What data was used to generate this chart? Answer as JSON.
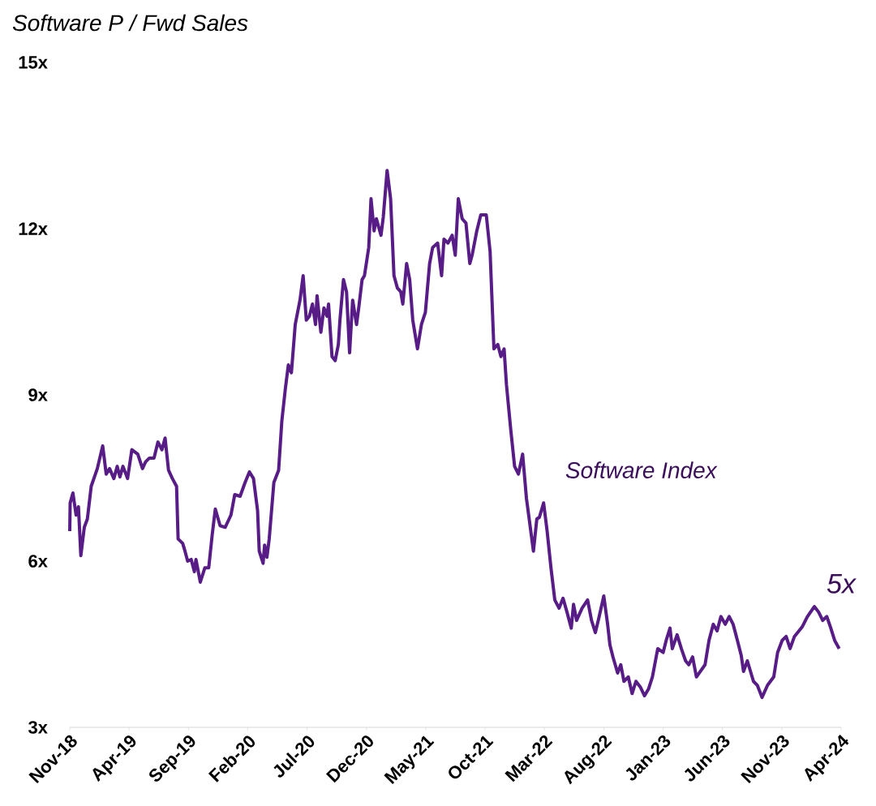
{
  "chart_data": {
    "type": "line",
    "title": "Software P / Fwd Sales",
    "color": "#581c87",
    "annotations": [
      "Software Index",
      "5x"
    ],
    "xlim": [
      "2018-11-01",
      "2024-04-01"
    ],
    "ylim": [
      3,
      15
    ],
    "xticks": [
      {
        "value": "2018-11-01",
        "label": "Nov-18"
      },
      {
        "value": "2019-04-01",
        "label": "Apr-19"
      },
      {
        "value": "2019-09-01",
        "label": "Sep-19"
      },
      {
        "value": "2020-02-01",
        "label": "Feb-20"
      },
      {
        "value": "2020-07-01",
        "label": "Jul-20"
      },
      {
        "value": "2020-12-01",
        "label": "Dec-20"
      },
      {
        "value": "2021-05-01",
        "label": "May-21"
      },
      {
        "value": "2021-10-01",
        "label": "Oct-21"
      },
      {
        "value": "2022-03-01",
        "label": "Mar-22"
      },
      {
        "value": "2022-08-01",
        "label": "Aug-22"
      },
      {
        "value": "2023-01-01",
        "label": "Jan-23"
      },
      {
        "value": "2023-06-01",
        "label": "Jun-23"
      },
      {
        "value": "2023-11-01",
        "label": "Nov-23"
      },
      {
        "value": "2024-04-01",
        "label": "Apr-24"
      }
    ],
    "yticks": [
      {
        "value": 3,
        "label": "3x"
      },
      {
        "value": 6,
        "label": "6x"
      },
      {
        "value": 9,
        "label": "9x"
      },
      {
        "value": 12,
        "label": "12x"
      },
      {
        "value": 15,
        "label": "15x"
      }
    ],
    "x": [
      "2018-11-01",
      "2018-11-02",
      "2018-11-09",
      "2018-11-17",
      "2018-11-23",
      "2018-11-29",
      "2018-12-08",
      "2018-12-16",
      "2018-12-26",
      "2019-01-11",
      "2019-01-25",
      "2019-02-03",
      "2019-02-11",
      "2019-02-21",
      "2019-03-01",
      "2019-03-08",
      "2019-03-16",
      "2019-03-28",
      "2019-04-08",
      "2019-04-23",
      "2019-05-05",
      "2019-05-13",
      "2019-05-23",
      "2019-06-04",
      "2019-06-14",
      "2019-06-24",
      "2019-07-02",
      "2019-07-11",
      "2019-07-21",
      "2019-08-01",
      "2019-08-05",
      "2019-08-17",
      "2019-08-23",
      "2019-08-30",
      "2019-09-08",
      "2019-09-16",
      "2019-09-20",
      "2019-10-01",
      "2019-10-13",
      "2019-10-23",
      "2019-11-01",
      "2019-11-09",
      "2019-11-21",
      "2019-12-04",
      "2019-12-19",
      "2019-12-29",
      "2020-01-12",
      "2020-01-25",
      "2020-02-05",
      "2020-02-15",
      "2020-02-25",
      "2020-02-29",
      "2020-03-10",
      "2020-03-14",
      "2020-03-20",
      "2020-03-26",
      "2020-04-07",
      "2020-04-19",
      "2020-04-27",
      "2020-05-06",
      "2020-05-14",
      "2020-05-22",
      "2020-06-01",
      "2020-06-13",
      "2020-06-21",
      "2020-06-29",
      "2020-07-07",
      "2020-07-15",
      "2020-07-23",
      "2020-07-27",
      "2020-08-06",
      "2020-08-14",
      "2020-08-22",
      "2020-08-26",
      "2020-09-04",
      "2020-09-12",
      "2020-09-20",
      "2020-09-24",
      "2020-10-03",
      "2020-10-11",
      "2020-10-19",
      "2020-10-27",
      "2020-11-06",
      "2020-11-12",
      "2020-11-20",
      "2020-11-26",
      "2020-12-07",
      "2020-12-13",
      "2020-12-21",
      "2020-12-27",
      "2021-01-08",
      "2021-01-14",
      "2021-01-24",
      "2021-02-02",
      "2021-02-10",
      "2021-02-18",
      "2021-02-26",
      "2021-03-03",
      "2021-03-13",
      "2021-03-21",
      "2021-03-29",
      "2021-04-10",
      "2021-04-20",
      "2021-04-30",
      "2021-05-11",
      "2021-05-19",
      "2021-06-01",
      "2021-06-11",
      "2021-06-17",
      "2021-06-27",
      "2021-07-08",
      "2021-07-16",
      "2021-07-24",
      "2021-08-03",
      "2021-08-13",
      "2021-08-23",
      "2021-08-29",
      "2021-09-10",
      "2021-09-20",
      "2021-10-04",
      "2021-10-14",
      "2021-10-24",
      "2021-11-03",
      "2021-11-11",
      "2021-11-19",
      "2021-11-25",
      "2021-12-06",
      "2021-12-16",
      "2021-12-26",
      "2022-01-06",
      "2022-01-16",
      "2022-01-26",
      "2022-02-03",
      "2022-02-11",
      "2022-02-17",
      "2022-02-27",
      "2022-03-08",
      "2022-03-18",
      "2022-03-28",
      "2022-04-08",
      "2022-04-18",
      "2022-04-28",
      "2022-05-09",
      "2022-05-15",
      "2022-05-23",
      "2022-06-06",
      "2022-06-20",
      "2022-06-30",
      "2022-07-10",
      "2022-07-20",
      "2022-08-01",
      "2022-08-11",
      "2022-08-17",
      "2022-08-25",
      "2022-09-06",
      "2022-09-14",
      "2022-09-22",
      "2022-10-03",
      "2022-10-13",
      "2022-10-23",
      "2022-11-04",
      "2022-11-14",
      "2022-11-24",
      "2022-12-04",
      "2022-12-18",
      "2023-01-01",
      "2023-01-09",
      "2023-01-19",
      "2023-01-25",
      "2023-02-06",
      "2023-02-16",
      "2023-02-26",
      "2023-03-06",
      "2023-03-16",
      "2023-03-26",
      "2023-04-17",
      "2023-04-27",
      "2023-05-08",
      "2023-05-18",
      "2023-05-28",
      "2023-06-08",
      "2023-06-18",
      "2023-06-28",
      "2023-07-09",
      "2023-07-19",
      "2023-07-25",
      "2023-08-04",
      "2023-08-20",
      "2023-08-30",
      "2023-09-11",
      "2023-09-25",
      "2023-10-11",
      "2023-10-21",
      "2023-11-02",
      "2023-11-12",
      "2023-11-22",
      "2023-12-03",
      "2023-12-23",
      "2024-01-06",
      "2024-01-24",
      "2024-02-04",
      "2024-02-14",
      "2024-02-24",
      "2024-03-05",
      "2024-03-15",
      "2024-03-27"
    ],
    "values": [
      6.54,
      7.05,
      7.23,
      6.83,
      6.98,
      6.1,
      6.61,
      6.76,
      7.35,
      7.67,
      8.08,
      7.57,
      7.67,
      7.49,
      7.71,
      7.52,
      7.71,
      7.49,
      8.01,
      7.93,
      7.67,
      7.79,
      7.86,
      7.86,
      8.15,
      8.01,
      8.22,
      7.64,
      7.49,
      7.35,
      6.4,
      6.32,
      6.18,
      6.0,
      6.03,
      5.81,
      6.03,
      5.62,
      5.88,
      5.88,
      6.47,
      6.94,
      6.64,
      6.61,
      6.83,
      7.2,
      7.17,
      7.42,
      7.61,
      7.49,
      6.91,
      6.18,
      5.96,
      6.29,
      6.07,
      6.4,
      7.42,
      7.64,
      8.52,
      9.1,
      9.54,
      9.4,
      10.27,
      10.71,
      11.15,
      10.35,
      10.42,
      10.64,
      10.27,
      10.79,
      10.13,
      10.57,
      10.42,
      10.64,
      9.69,
      9.62,
      9.91,
      10.35,
      11.08,
      10.86,
      9.76,
      10.71,
      10.27,
      10.6,
      11.08,
      11.15,
      11.66,
      12.54,
      11.96,
      12.18,
      11.88,
      12.21,
      13.05,
      12.54,
      11.15,
      10.93,
      10.86,
      10.64,
      11.37,
      11.08,
      10.35,
      9.83,
      10.27,
      10.49,
      11.37,
      11.66,
      11.74,
      11.15,
      11.81,
      11.74,
      11.88,
      11.52,
      12.54,
      12.18,
      12.1,
      11.37,
      11.52,
      11.96,
      12.25,
      12.25,
      11.59,
      9.83,
      9.91,
      9.69,
      9.83,
      9.18,
      8.37,
      7.71,
      7.57,
      7.93,
      7.13,
      6.61,
      6.18,
      6.76,
      6.79,
      7.05,
      6.54,
      5.88,
      5.3,
      5.15,
      5.33,
      5.08,
      4.79,
      5.22,
      4.93,
      5.15,
      5.3,
      4.93,
      4.71,
      5.0,
      5.37,
      4.86,
      4.49,
      4.27,
      3.98,
      4.13,
      3.83,
      3.91,
      3.61,
      3.83,
      3.72,
      3.57,
      3.69,
      3.91,
      4.42,
      4.35,
      4.57,
      4.79,
      4.42,
      4.67,
      4.42,
      4.2,
      4.13,
      4.27,
      3.91,
      4.13,
      4.57,
      4.86,
      4.74,
      5.0,
      4.86,
      5.0,
      4.86,
      4.57,
      4.3,
      4.01,
      4.2,
      3.83,
      3.76,
      3.54,
      3.76,
      3.91,
      4.35,
      4.57,
      4.64,
      4.42,
      4.64,
      4.81,
      5.0,
      5.18,
      5.08,
      4.93,
      5.0,
      4.79,
      4.57,
      4.42
    ]
  }
}
